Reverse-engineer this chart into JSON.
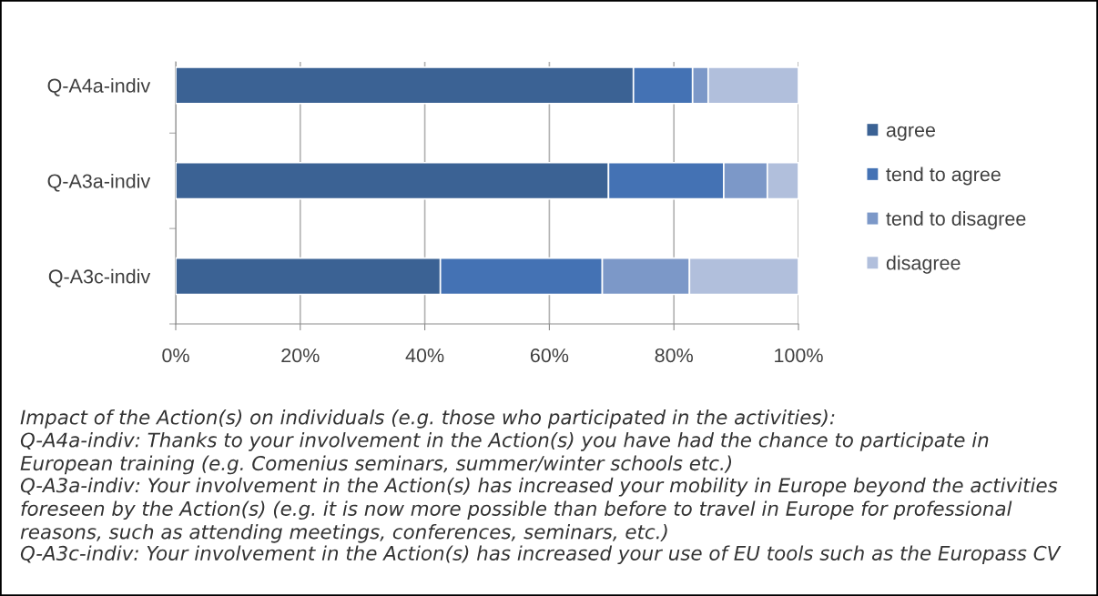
{
  "chart_data": {
    "type": "bar",
    "orientation": "horizontal",
    "stacked": true,
    "categories": [
      "Q-A4a-indiv",
      "Q-A3a-indiv",
      "Q-A3c-indiv"
    ],
    "series": [
      {
        "name": "agree",
        "color": "#3b6294",
        "values": [
          73.5,
          69.5,
          42.5
        ]
      },
      {
        "name": "tend to agree",
        "color": "#4472b4",
        "values": [
          9.5,
          18.5,
          26
        ]
      },
      {
        "name": "tend to disagree",
        "color": "#7c98c8",
        "values": [
          2.5,
          7,
          14
        ]
      },
      {
        "name": "disagree",
        "color": "#b1bfdc",
        "values": [
          14.5,
          5,
          17.5
        ]
      }
    ],
    "xlim": [
      0,
      100
    ],
    "xticks": [
      {
        "value": 0,
        "label": "0%"
      },
      {
        "value": 20,
        "label": "20%"
      },
      {
        "value": 40,
        "label": "40%"
      },
      {
        "value": 60,
        "label": "60%"
      },
      {
        "value": 80,
        "label": "80%"
      },
      {
        "value": 100,
        "label": "100%"
      }
    ],
    "grid": "x",
    "legend": "right",
    "annotations": [
      "Impact of the Action(s) on individuals (e.g. those who participated in the activities):",
      "Q-A4a-indiv: Thanks to your involvement in the Action(s) you have had the chance to participate in European training (e.g. Comenius seminars, summer/winter schools etc.)",
      "Q-A3a-indiv: Your involvement in the Action(s) has increased your mobility in Europe beyond the activities foreseen by the Action(s) (e.g. it is now more possible than before to travel in Europe for professional reasons, such as attending meetings, conferences, seminars, etc.)",
      "Q-A3c-indiv: Your involvement in the Action(s) has increased your use of EU tools such as the Europass CV"
    ]
  }
}
